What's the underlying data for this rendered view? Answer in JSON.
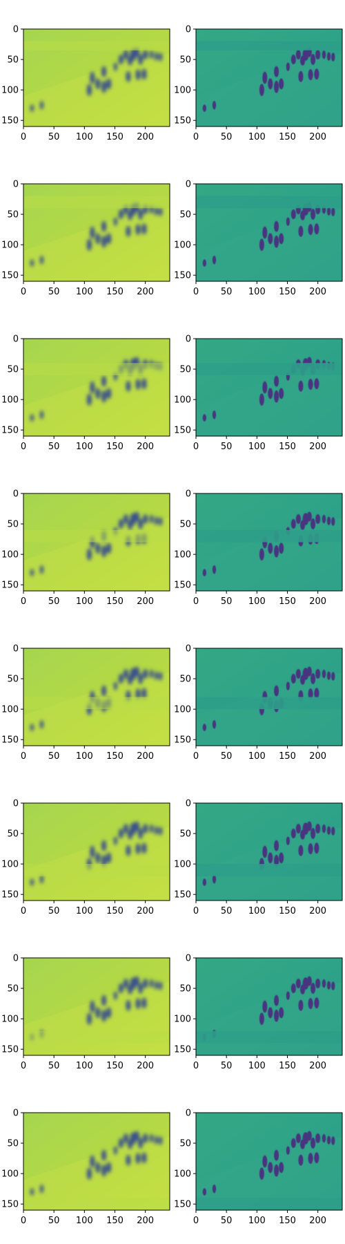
{
  "chart_data": {
    "type": "heatmap",
    "layout": "8 rows x 2 columns of image panels",
    "colormap": "viridis",
    "image_extent": {
      "x": [
        0,
        240
      ],
      "y": [
        160,
        0
      ]
    },
    "x_ticks": [
      "0",
      "50",
      "100",
      "150",
      "200"
    ],
    "y_ticks": [
      "0",
      "50",
      "100",
      "150"
    ],
    "panel_descriptions": {
      "left": "blurred reconstruction of a crowd scene (yellow-green background, dark blue figures)",
      "right": "sharp image of a crowd scene (teal background, purple figures)"
    },
    "rows": [
      {
        "row": 1,
        "occlusion_band_y": [
          20,
          35
        ]
      },
      {
        "row": 2,
        "occlusion_band_y": [
          20,
          40
        ]
      },
      {
        "row": 3,
        "occlusion_band_y": [
          40,
          60
        ]
      },
      {
        "row": 4,
        "occlusion_band_y": [
          60,
          80
        ]
      },
      {
        "row": 5,
        "occlusion_band_y": [
          80,
          100
        ]
      },
      {
        "row": 6,
        "occlusion_band_y": [
          100,
          120
        ]
      },
      {
        "row": 7,
        "occlusion_band_y": [
          120,
          140
        ]
      },
      {
        "row": 8,
        "occlusion_band_y": [
          140,
          160
        ]
      }
    ],
    "colors": {
      "left_background": "#b5d944",
      "left_figures": "#3b4f8c",
      "right_background": "#2a9e8a",
      "right_figures": "#463480"
    },
    "title": "",
    "xlabel": "",
    "ylabel": ""
  }
}
